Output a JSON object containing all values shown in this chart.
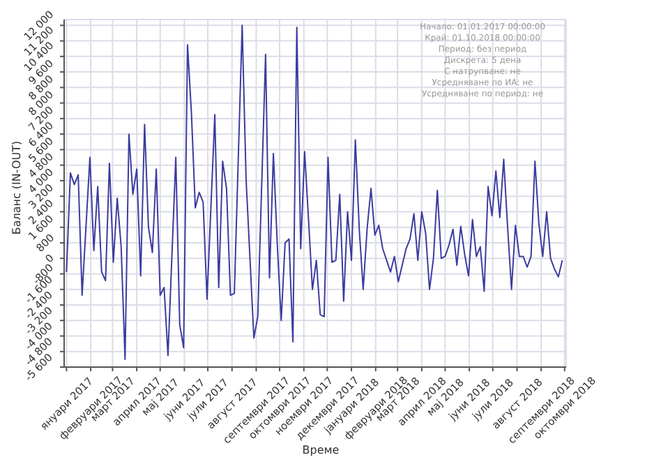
{
  "chart_data": {
    "type": "line",
    "xlabel": "Време",
    "ylabel": "Баланс (IN-OUT)",
    "annotations": [
      "Начало: 01.01.2017 00:00:00",
      "Край: 01.10.2018 00:00:00",
      "Период: без период",
      "Дискрета: 5 дена",
      "С натрупване: не",
      "Усредняване по ИА: не",
      "Усредняване по период: не"
    ],
    "x": [
      "2017-01-01",
      "2017-01-06",
      "2017-01-11",
      "2017-01-16",
      "2017-01-21",
      "2017-01-31",
      "2017-02-05",
      "2017-02-10",
      "2017-02-15",
      "2017-02-20",
      "2017-02-25",
      "2017-03-02",
      "2017-03-07",
      "2017-03-12",
      "2017-03-17",
      "2017-03-22",
      "2017-03-27",
      "2017-04-01",
      "2017-04-06",
      "2017-04-11",
      "2017-04-16",
      "2017-04-21",
      "2017-04-26",
      "2017-05-01",
      "2017-05-06",
      "2017-05-11",
      "2017-05-21",
      "2017-05-26",
      "2017-05-31",
      "2017-06-05",
      "2017-06-10",
      "2017-06-15",
      "2017-06-20",
      "2017-06-25",
      "2017-06-30",
      "2017-07-10",
      "2017-07-15",
      "2017-07-20",
      "2017-07-25",
      "2017-07-30",
      "2017-08-04",
      "2017-08-14",
      "2017-08-19",
      "2017-08-29",
      "2017-09-03",
      "2017-09-13",
      "2017-09-18",
      "2017-09-23",
      "2017-09-28",
      "2017-10-03",
      "2017-10-08",
      "2017-10-13",
      "2017-10-18",
      "2017-10-23",
      "2017-10-28",
      "2017-11-02",
      "2017-11-07",
      "2017-11-12",
      "2017-11-17",
      "2017-11-22",
      "2017-11-27",
      "2017-12-02",
      "2017-12-07",
      "2017-12-12",
      "2017-12-17",
      "2017-12-22",
      "2017-12-27",
      "2018-01-01",
      "2018-01-06",
      "2018-01-11",
      "2018-01-16",
      "2018-01-21",
      "2018-01-26",
      "2018-01-31",
      "2018-02-05",
      "2018-02-10",
      "2018-02-20",
      "2018-02-25",
      "2018-03-02",
      "2018-03-12",
      "2018-03-17",
      "2018-03-22",
      "2018-03-27",
      "2018-04-01",
      "2018-04-06",
      "2018-04-11",
      "2018-04-16",
      "2018-04-21",
      "2018-04-26",
      "2018-05-01",
      "2018-05-06",
      "2018-05-11",
      "2018-05-16",
      "2018-05-21",
      "2018-05-26",
      "2018-05-31",
      "2018-06-05",
      "2018-06-10",
      "2018-06-15",
      "2018-06-20",
      "2018-06-25",
      "2018-06-30",
      "2018-07-05",
      "2018-07-10",
      "2018-07-15",
      "2018-07-20",
      "2018-07-25",
      "2018-07-30",
      "2018-08-04",
      "2018-08-09",
      "2018-08-14",
      "2018-08-19",
      "2018-08-24",
      "2018-08-29",
      "2018-09-03",
      "2018-09-08",
      "2018-09-13",
      "2018-09-18",
      "2018-09-23",
      "2018-09-28"
    ],
    "series": [
      {
        "color": "#3c3ca0",
        "values": [
          -700,
          4400,
          3800,
          4300,
          -1900,
          5200,
          400,
          3700,
          -700,
          -1150,
          4900,
          -200,
          3100,
          600,
          -5200,
          6400,
          3300,
          4600,
          -900,
          6900,
          1600,
          300,
          4600,
          -1900,
          -1500,
          -5000,
          5200,
          -3400,
          -4600,
          11000,
          7500,
          2600,
          3400,
          2900,
          -2100,
          7400,
          -1500,
          5000,
          3600,
          -1900,
          -1800,
          12000,
          4100,
          -4100,
          -3000,
          10500,
          -1000,
          5400,
          700,
          -3200,
          800,
          1000,
          -4300,
          11900,
          500,
          5500,
          2000,
          -1600,
          -100,
          -2900,
          -3000,
          5200,
          -200,
          -100,
          3300,
          -2200,
          2400,
          -100,
          6100,
          1500,
          -1600,
          1500,
          3600,
          1200,
          1700,
          500,
          -700,
          100,
          -1200,
          500,
          1000,
          2300,
          -100,
          2400,
          1300,
          -1600,
          0,
          3500,
          0,
          100,
          700,
          1500,
          -350,
          1650,
          200,
          -900,
          2000,
          100,
          600,
          -1700,
          3700,
          2200,
          4500,
          2100,
          5100,
          1600,
          -1600,
          1700,
          100,
          100,
          -450,
          100,
          5000,
          1800,
          100,
          2400,
          0,
          -550,
          -950,
          -100
        ]
      }
    ],
    "xlim": [
      "2016-12-29",
      "2018-10-03"
    ],
    "xticks": [
      {
        "value": "2017-01-01",
        "label": "януари 2017"
      },
      {
        "value": "2017-02-01",
        "label": "февруари 2017"
      },
      {
        "value": "2017-03-01",
        "label": "март 2017"
      },
      {
        "value": "2017-04-01",
        "label": "април 2017"
      },
      {
        "value": "2017-05-01",
        "label": "мај 2017"
      },
      {
        "value": "2017-06-01",
        "label": "јуни 2017"
      },
      {
        "value": "2017-07-01",
        "label": "јули 2017"
      },
      {
        "value": "2017-08-01",
        "label": "август 2017"
      },
      {
        "value": "2017-09-01",
        "label": "септември 2017"
      },
      {
        "value": "2017-10-01",
        "label": "октомври 2017"
      },
      {
        "value": "2017-11-01",
        "label": "ноември 2017"
      },
      {
        "value": "2017-12-01",
        "label": "декември 2017"
      },
      {
        "value": "2018-01-01",
        "label": "јануари 2018"
      },
      {
        "value": "2018-02-01",
        "label": "февруари 2018"
      },
      {
        "value": "2018-03-01",
        "label": "март 2018"
      },
      {
        "value": "2018-04-01",
        "label": "април 2018"
      },
      {
        "value": "2018-05-01",
        "label": "мај 2018"
      },
      {
        "value": "2018-06-01",
        "label": "јуни 2018"
      },
      {
        "value": "2018-07-01",
        "label": "јули 2018"
      },
      {
        "value": "2018-08-01",
        "label": "август 2018"
      },
      {
        "value": "2018-09-01",
        "label": "септември 2018"
      },
      {
        "value": "2018-10-01",
        "label": "октомври 2018"
      }
    ],
    "ylim": [
      -5600,
      12300
    ],
    "yticks": [
      {
        "value": -5600,
        "label": "-5 600"
      },
      {
        "value": -4800,
        "label": "-4 800"
      },
      {
        "value": -4000,
        "label": "-4 000"
      },
      {
        "value": -3200,
        "label": "-3 200"
      },
      {
        "value": -2400,
        "label": "-2 400"
      },
      {
        "value": -1600,
        "label": "-1 600"
      },
      -800,
      0,
      800,
      {
        "value": 1600,
        "label": "1 600"
      },
      {
        "value": 2400,
        "label": "2 400"
      },
      {
        "value": 3200,
        "label": "3 200"
      },
      {
        "value": 4000,
        "label": "4 000"
      },
      {
        "value": 4800,
        "label": "4 800"
      },
      {
        "value": 5600,
        "label": "5 600"
      },
      {
        "value": 6400,
        "label": "6 400"
      },
      {
        "value": 7200,
        "label": "7 200"
      },
      {
        "value": 8000,
        "label": "8 000"
      },
      {
        "value": 8800,
        "label": "8 800"
      },
      {
        "value": 9600,
        "label": "9 600"
      },
      {
        "value": 10400,
        "label": "10 400"
      },
      {
        "value": 11200,
        "label": "11 200"
      },
      {
        "value": 12000,
        "label": "12 000"
      }
    ],
    "grid": true,
    "marker": "none",
    "line_style": "solid"
  }
}
